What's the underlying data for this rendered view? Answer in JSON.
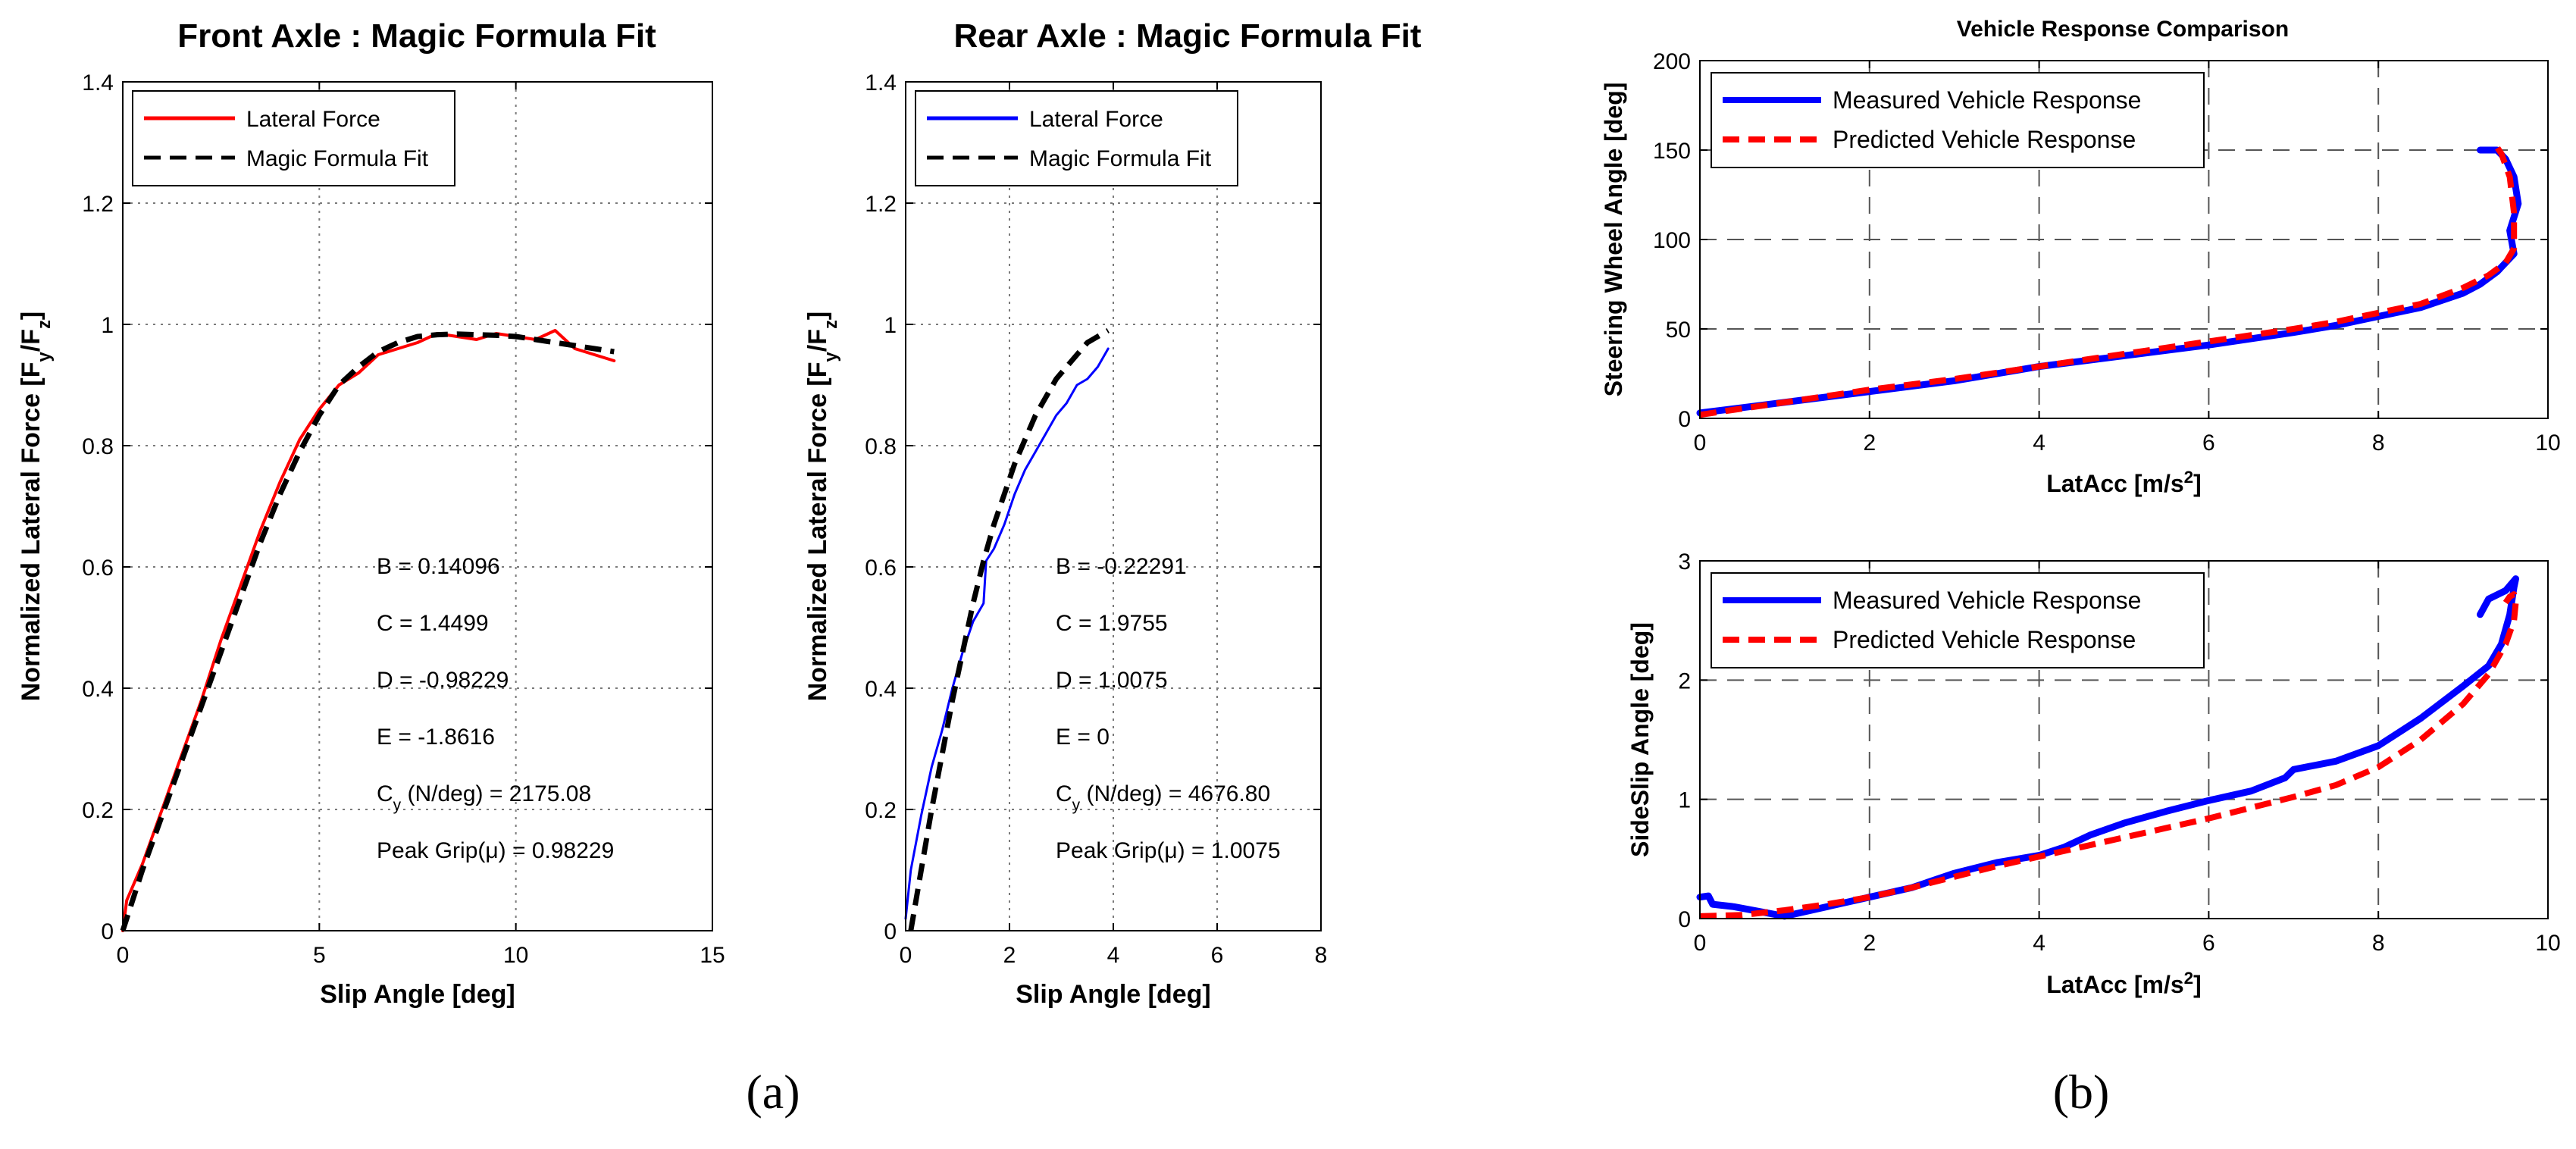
{
  "panels": {
    "a": "(a)",
    "b": "(b)"
  },
  "chart_data": [
    {
      "type": "line",
      "title": "Front Axle : Magic Formula Fit",
      "xlabel": "Slip Angle [deg]",
      "ylabel": "Normalized Lateral Force [F_y/F_z]",
      "xlim": [
        0,
        15
      ],
      "ylim": [
        0,
        1.4
      ],
      "xticks": [
        0,
        5,
        10,
        15
      ],
      "yticks": [
        0,
        0.2,
        0.4,
        0.6,
        0.8,
        1,
        1.2,
        1.4
      ],
      "grid": true,
      "legend_position": "top-left",
      "series": [
        {
          "name": "Lateral Force",
          "color": "#ff0000",
          "style": "solid",
          "x": [
            0,
            0.1,
            0.5,
            1,
            1.5,
            2,
            2.5,
            3,
            3.5,
            4,
            4.5,
            5,
            5.5,
            6,
            6.5,
            7,
            7.5,
            8,
            8.5,
            9,
            9.5,
            10,
            10.5,
            11,
            11.5,
            12,
            12.5
          ],
          "y": [
            0,
            0.05,
            0.11,
            0.2,
            0.29,
            0.38,
            0.48,
            0.57,
            0.66,
            0.74,
            0.81,
            0.86,
            0.9,
            0.92,
            0.95,
            0.96,
            0.97,
            0.985,
            0.98,
            0.975,
            0.985,
            0.98,
            0.975,
            0.99,
            0.96,
            0.95,
            0.94
          ]
        },
        {
          "name": "Magic Formula Fit",
          "color": "#000000",
          "style": "dashed",
          "x": [
            0,
            0.5,
            1,
            1.5,
            2,
            2.5,
            3,
            3.5,
            4,
            4.5,
            5,
            5.5,
            6,
            6.5,
            7,
            7.5,
            8,
            8.5,
            9,
            9.5,
            10,
            10.5,
            11,
            11.5,
            12,
            12.5
          ],
          "y": [
            0,
            0.1,
            0.19,
            0.28,
            0.37,
            0.46,
            0.55,
            0.64,
            0.72,
            0.79,
            0.85,
            0.9,
            0.93,
            0.955,
            0.97,
            0.98,
            0.983,
            0.984,
            0.983,
            0.982,
            0.98,
            0.975,
            0.97,
            0.965,
            0.96,
            0.955
          ]
        }
      ],
      "annotations": [
        "B = 0.14096",
        "C = 1.4499",
        "D = -0.98229",
        "E = -1.8616",
        "C_y (N/deg) = 2175.08",
        "Peak Grip(μ) = 0.98229"
      ]
    },
    {
      "type": "line",
      "title": "Rear Axle : Magic Formula Fit",
      "xlabel": "Slip Angle [deg]",
      "ylabel": "Normalized Lateral Force [F_y/F_z]",
      "xlim": [
        0,
        8
      ],
      "ylim": [
        0,
        1.4
      ],
      "xticks": [
        0,
        2,
        4,
        6,
        8
      ],
      "yticks": [
        0,
        0.2,
        0.4,
        0.6,
        0.8,
        1,
        1.2,
        1.4
      ],
      "grid": true,
      "legend_position": "top-left",
      "series": [
        {
          "name": "Lateral Force",
          "color": "#0000ff",
          "style": "solid",
          "x": [
            0,
            0.1,
            0.3,
            0.5,
            0.7,
            0.9,
            1.1,
            1.3,
            1.5,
            1.55,
            1.7,
            1.9,
            2.1,
            2.3,
            2.5,
            2.7,
            2.9,
            3.1,
            3.3,
            3.5,
            3.7,
            3.9
          ],
          "y": [
            0.02,
            0.1,
            0.19,
            0.27,
            0.33,
            0.4,
            0.46,
            0.51,
            0.54,
            0.61,
            0.63,
            0.67,
            0.72,
            0.76,
            0.79,
            0.82,
            0.85,
            0.87,
            0.9,
            0.91,
            0.93,
            0.96
          ]
        },
        {
          "name": "Magic Formula Fit",
          "color": "#000000",
          "style": "dashed",
          "x": [
            0.1,
            0.3,
            0.5,
            0.7,
            0.9,
            1.1,
            1.3,
            1.5,
            1.7,
            1.9,
            2.1,
            2.3,
            2.5,
            2.7,
            2.9,
            3.1,
            3.3,
            3.5,
            3.7,
            3.9
          ],
          "y": [
            0,
            0.1,
            0.2,
            0.29,
            0.38,
            0.46,
            0.54,
            0.61,
            0.67,
            0.72,
            0.77,
            0.81,
            0.85,
            0.88,
            0.91,
            0.93,
            0.95,
            0.97,
            0.98,
            0.99
          ]
        }
      ],
      "annotations": [
        "B = -0.22291",
        "C = 1.9755",
        "D = 1.0075",
        "E = 0",
        "C_y (N/deg) = 4676.80",
        "Peak Grip(μ) = 1.0075"
      ]
    },
    {
      "type": "line",
      "title": "Vehicle Response Comparison",
      "xlabel": "LatAcc [m/s²]",
      "ylabel": "Steering Wheel Angle [deg]",
      "xlim": [
        0,
        10
      ],
      "ylim": [
        0,
        200
      ],
      "xticks": [
        0,
        2,
        4,
        6,
        8,
        10
      ],
      "yticks": [
        0,
        50,
        100,
        150,
        200
      ],
      "grid": true,
      "legend_position": "top-left",
      "series": [
        {
          "name": "Measured Vehicle Response",
          "color": "#0000ff",
          "style": "solid",
          "x": [
            0,
            1,
            2,
            3,
            4,
            5,
            6,
            7,
            7.5,
            8,
            8.5,
            9,
            9.2,
            9.4,
            9.6,
            9.55,
            9.65,
            9.6,
            9.5,
            9.4,
            9.2
          ],
          "y": [
            3,
            9,
            15,
            21,
            29,
            35,
            41,
            48,
            52,
            57,
            62,
            70,
            75,
            82,
            92,
            105,
            120,
            135,
            145,
            150,
            150
          ]
        },
        {
          "name": "Predicted Vehicle Response",
          "color": "#ff0000",
          "style": "dashed",
          "x": [
            0,
            1,
            2,
            3,
            4,
            5,
            6,
            7,
            7.5,
            8,
            8.5,
            9,
            9.3,
            9.5,
            9.6,
            9.6,
            9.55,
            9.45,
            9.35
          ],
          "y": [
            2,
            9,
            16,
            22,
            29,
            36,
            43,
            50,
            54,
            59,
            64,
            73,
            80,
            87,
            95,
            115,
            135,
            148,
            155
          ]
        }
      ]
    },
    {
      "type": "line",
      "title": "",
      "xlabel": "LatAcc [m/s²]",
      "ylabel": "SideSlip Angle [deg]",
      "xlim": [
        0,
        10
      ],
      "ylim": [
        0,
        3
      ],
      "xticks": [
        0,
        2,
        4,
        6,
        8,
        10
      ],
      "yticks": [
        0,
        1,
        2,
        3
      ],
      "grid": true,
      "legend_position": "top-left",
      "series": [
        {
          "name": "Measured Vehicle Response",
          "color": "#0000ff",
          "style": "solid",
          "x": [
            0,
            0.1,
            0.15,
            0.4,
            0.7,
            1,
            1.5,
            2,
            2.5,
            3,
            3.5,
            4,
            4.3,
            4.6,
            5,
            5.5,
            6,
            6.5,
            6.9,
            7,
            7.5,
            8,
            8.5,
            9,
            9.3,
            9.45,
            9.55,
            9.6,
            9.62,
            9.5,
            9.3,
            9.2
          ],
          "y": [
            0.18,
            0.19,
            0.12,
            0.1,
            0.06,
            0.02,
            0.1,
            0.18,
            0.26,
            0.38,
            0.47,
            0.53,
            0.6,
            0.7,
            0.8,
            0.9,
            0.99,
            1.07,
            1.18,
            1.25,
            1.32,
            1.45,
            1.68,
            1.95,
            2.12,
            2.3,
            2.55,
            2.78,
            2.85,
            2.75,
            2.68,
            2.55
          ]
        },
        {
          "name": "Predicted Vehicle Response",
          "color": "#ff0000",
          "style": "dashed",
          "x": [
            0,
            0.5,
            1,
            1.5,
            2,
            2.5,
            3,
            3.5,
            4,
            4.5,
            5,
            5.5,
            6,
            6.5,
            7,
            7.5,
            8,
            8.5,
            9,
            9.3,
            9.5,
            9.6,
            9.62,
            9.6,
            9.55,
            9.5
          ],
          "y": [
            0.02,
            0.03,
            0.07,
            0.12,
            0.18,
            0.26,
            0.35,
            0.44,
            0.52,
            0.6,
            0.68,
            0.76,
            0.84,
            0.93,
            1.02,
            1.12,
            1.27,
            1.5,
            1.8,
            2.05,
            2.3,
            2.5,
            2.65,
            2.72,
            2.7,
            2.65
          ]
        }
      ]
    }
  ]
}
